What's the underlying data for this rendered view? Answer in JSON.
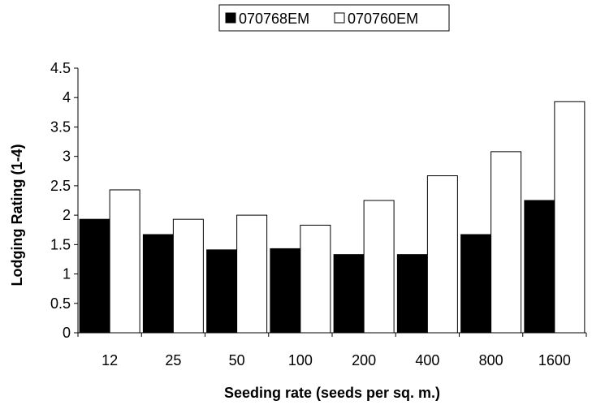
{
  "chart_data": {
    "type": "bar",
    "categories": [
      "12",
      "25",
      "50",
      "100",
      "200",
      "400",
      "800",
      "1600"
    ],
    "series": [
      {
        "name": "070768EM",
        "color": "#000000",
        "values": [
          1.93,
          1.67,
          1.41,
          1.43,
          1.33,
          1.33,
          1.67,
          2.25
        ]
      },
      {
        "name": "070760EM",
        "color": "#ffffff",
        "values": [
          2.43,
          1.93,
          2.0,
          1.83,
          2.25,
          2.67,
          3.08,
          3.93
        ]
      }
    ],
    "title": "",
    "xlabel": "Seeding rate (seeds per sq. m.)",
    "ylabel": "Lodging Rating (1-4)",
    "ylim": [
      0,
      4.5
    ],
    "yticks": [
      "0",
      "0.5",
      "1",
      "1.5",
      "2",
      "2.5",
      "3",
      "3.5",
      "4",
      "4.5"
    ],
    "grid": false,
    "legend_position": "top-center"
  }
}
